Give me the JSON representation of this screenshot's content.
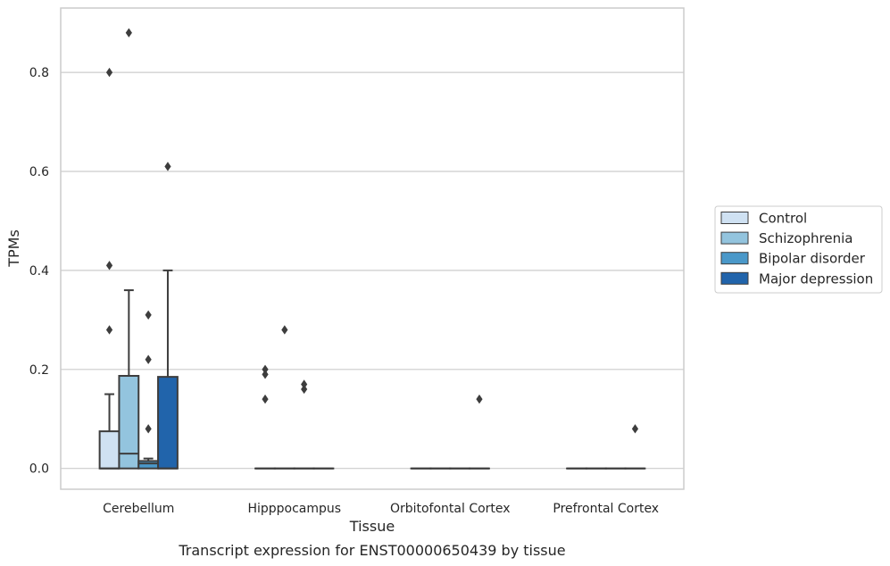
{
  "chart_data": {
    "type": "boxplot",
    "xlabel": "Tissue",
    "ylabel": "TPMs",
    "caption": "Transcript expression for ENST00000650439 by tissue",
    "ylim": [
      -0.042,
      0.93
    ],
    "yticks": [
      0.0,
      0.2,
      0.4,
      0.6,
      0.8
    ],
    "ytick_labels": [
      "0.0",
      "0.2",
      "0.4",
      "0.6",
      "0.8"
    ],
    "grid": "horizontal",
    "legend_position": "right",
    "categories": [
      "Cerebellum",
      "Hipppocampus",
      "Orbitofontal Cortex",
      "Prefrontal Cortex"
    ],
    "groups": [
      "Control",
      "Schizophrenia",
      "Bipolar disorder",
      "Major depression"
    ],
    "colors": [
      "#cfe1f2",
      "#93c4de",
      "#4a98c9",
      "#2164ab"
    ],
    "edge_color": "#3d3d3d",
    "boxes": [
      [
        {
          "q1": 0.0,
          "median": 0.0,
          "q3": 0.075,
          "whislo": 0.0,
          "whishi": 0.15,
          "fliers": [
            0.28,
            0.41,
            0.8
          ]
        },
        {
          "q1": 0.0,
          "median": 0.03,
          "q3": 0.187,
          "whislo": 0.0,
          "whishi": 0.36,
          "fliers": [
            0.88
          ]
        },
        {
          "q1": 0.0,
          "median": 0.01,
          "q3": 0.015,
          "whislo": 0.0,
          "whishi": 0.02,
          "fliers": [
            0.08,
            0.22,
            0.31
          ]
        },
        {
          "q1": 0.0,
          "median": 0.0,
          "q3": 0.185,
          "whislo": 0.0,
          "whishi": 0.4,
          "fliers": [
            0.61
          ]
        }
      ],
      [
        {
          "q1": 0.0,
          "median": 0.0,
          "q3": 0.0,
          "whislo": 0.0,
          "whishi": 0.0,
          "fliers": [
            0.14,
            0.19,
            0.2
          ]
        },
        {
          "q1": 0.0,
          "median": 0.0,
          "q3": 0.0,
          "whislo": 0.0,
          "whishi": 0.0,
          "fliers": [
            0.28
          ]
        },
        {
          "q1": 0.0,
          "median": 0.0,
          "q3": 0.0,
          "whislo": 0.0,
          "whishi": 0.0,
          "fliers": [
            0.16,
            0.17
          ]
        },
        {
          "q1": 0.0,
          "median": 0.0,
          "q3": 0.0,
          "whislo": 0.0,
          "whishi": 0.0,
          "fliers": []
        }
      ],
      [
        {
          "q1": 0.0,
          "median": 0.0,
          "q3": 0.0,
          "whislo": 0.0,
          "whishi": 0.0,
          "fliers": []
        },
        {
          "q1": 0.0,
          "median": 0.0,
          "q3": 0.0,
          "whislo": 0.0,
          "whishi": 0.0,
          "fliers": []
        },
        {
          "q1": 0.0,
          "median": 0.0,
          "q3": 0.0,
          "whislo": 0.0,
          "whishi": 0.0,
          "fliers": []
        },
        {
          "q1": 0.0,
          "median": 0.0,
          "q3": 0.0,
          "whislo": 0.0,
          "whishi": 0.0,
          "fliers": [
            0.14
          ]
        }
      ],
      [
        {
          "q1": 0.0,
          "median": 0.0,
          "q3": 0.0,
          "whislo": 0.0,
          "whishi": 0.0,
          "fliers": []
        },
        {
          "q1": 0.0,
          "median": 0.0,
          "q3": 0.0,
          "whislo": 0.0,
          "whishi": 0.0,
          "fliers": []
        },
        {
          "q1": 0.0,
          "median": 0.0,
          "q3": 0.0,
          "whislo": 0.0,
          "whishi": 0.0,
          "fliers": []
        },
        {
          "q1": 0.0,
          "median": 0.0,
          "q3": 0.0,
          "whislo": 0.0,
          "whishi": 0.0,
          "fliers": [
            0.08
          ]
        }
      ]
    ]
  }
}
